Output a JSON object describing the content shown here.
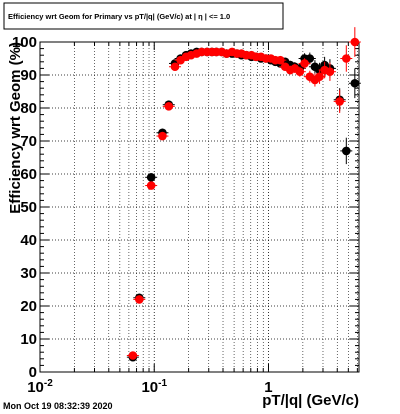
{
  "chart_data": {
    "type": "scatter",
    "title": "Efficiency wrt Geom for Primary vs pT/|q| (GeV/c) at | η | <= 1.0",
    "xlabel": "pT/|q| (GeV/c)",
    "ylabel": "Efficiency wrt Geom (%)",
    "x_scale": "log",
    "xlim": [
      0.01,
      6.2
    ],
    "ylim": [
      0,
      100
    ],
    "grid": true,
    "x_ticks": [
      {
        "value": 0.01,
        "label": "10",
        "sup": "-2"
      },
      {
        "value": 0.1,
        "label": "10",
        "sup": "-1"
      },
      {
        "value": 1,
        "label": "1",
        "sup": ""
      }
    ],
    "y_ticks": [
      0,
      10,
      20,
      30,
      40,
      50,
      60,
      70,
      80,
      90,
      100
    ],
    "series": [
      {
        "color": "#000000",
        "points": [
          {
            "x": 0.065,
            "y": 4.5,
            "err": 0.8
          },
          {
            "x": 0.074,
            "y": 22.5,
            "err": 0.8
          },
          {
            "x": 0.094,
            "y": 59,
            "err": 1.0
          },
          {
            "x": 0.118,
            "y": 72.5,
            "err": 1.2
          },
          {
            "x": 0.134,
            "y": 81,
            "err": 1.0
          },
          {
            "x": 0.152,
            "y": 93.5,
            "err": 0.8
          },
          {
            "x": 0.17,
            "y": 95,
            "err": 0.6
          },
          {
            "x": 0.19,
            "y": 96,
            "err": 0.5
          },
          {
            "x": 0.21,
            "y": 96.5,
            "err": 0.5
          },
          {
            "x": 0.235,
            "y": 97,
            "err": 0.5
          },
          {
            "x": 0.26,
            "y": 97,
            "err": 0.5
          },
          {
            "x": 0.29,
            "y": 97,
            "err": 0.5
          },
          {
            "x": 0.32,
            "y": 97,
            "err": 0.5
          },
          {
            "x": 0.35,
            "y": 97,
            "err": 0.5
          },
          {
            "x": 0.39,
            "y": 97,
            "err": 0.5
          },
          {
            "x": 0.43,
            "y": 96.5,
            "err": 0.5
          },
          {
            "x": 0.48,
            "y": 96.5,
            "err": 0.5
          },
          {
            "x": 0.53,
            "y": 96.5,
            "err": 0.5
          },
          {
            "x": 0.58,
            "y": 96,
            "err": 0.6
          },
          {
            "x": 0.64,
            "y": 96,
            "err": 0.6
          },
          {
            "x": 0.71,
            "y": 95.5,
            "err": 0.6
          },
          {
            "x": 0.78,
            "y": 95.5,
            "err": 0.7
          },
          {
            "x": 0.86,
            "y": 95,
            "err": 0.7
          },
          {
            "x": 0.95,
            "y": 95,
            "err": 0.8
          },
          {
            "x": 1.05,
            "y": 94.5,
            "err": 0.9
          },
          {
            "x": 1.15,
            "y": 94,
            "err": 1.0
          },
          {
            "x": 1.27,
            "y": 93.5,
            "err": 1.1
          },
          {
            "x": 1.4,
            "y": 94,
            "err": 1.2
          },
          {
            "x": 1.55,
            "y": 93,
            "err": 1.3
          },
          {
            "x": 1.7,
            "y": 92.5,
            "err": 1.4
          },
          {
            "x": 1.88,
            "y": 92,
            "err": 1.5
          },
          {
            "x": 2.07,
            "y": 95,
            "err": 1.6
          },
          {
            "x": 2.3,
            "y": 95,
            "err": 1.8
          },
          {
            "x": 2.55,
            "y": 92.5,
            "err": 2.0
          },
          {
            "x": 2.8,
            "y": 91.5,
            "err": 2.2
          },
          {
            "x": 3.1,
            "y": 93,
            "err": 2.5
          },
          {
            "x": 3.45,
            "y": 92,
            "err": 2.8
          },
          {
            "x": 4.2,
            "y": 82.5,
            "err": 3.5
          },
          {
            "x": 4.8,
            "y": 67,
            "err": 4.0
          },
          {
            "x": 5.7,
            "y": 87.5,
            "err": 4.5
          }
        ]
      },
      {
        "color": "#ff0000",
        "points": [
          {
            "x": 0.065,
            "y": 5,
            "err": 0.8
          },
          {
            "x": 0.074,
            "y": 22,
            "err": 0.8
          },
          {
            "x": 0.094,
            "y": 56.5,
            "err": 1.0
          },
          {
            "x": 0.118,
            "y": 71.5,
            "err": 1.2
          },
          {
            "x": 0.134,
            "y": 80.5,
            "err": 1.0
          },
          {
            "x": 0.152,
            "y": 92.5,
            "err": 0.8
          },
          {
            "x": 0.17,
            "y": 94.5,
            "err": 0.6
          },
          {
            "x": 0.19,
            "y": 95.5,
            "err": 0.5
          },
          {
            "x": 0.21,
            "y": 96,
            "err": 0.5
          },
          {
            "x": 0.235,
            "y": 96.5,
            "err": 0.5
          },
          {
            "x": 0.26,
            "y": 97,
            "err": 0.5
          },
          {
            "x": 0.29,
            "y": 97,
            "err": 0.5
          },
          {
            "x": 0.32,
            "y": 97,
            "err": 0.5
          },
          {
            "x": 0.35,
            "y": 97,
            "err": 0.5
          },
          {
            "x": 0.39,
            "y": 97,
            "err": 0.5
          },
          {
            "x": 0.43,
            "y": 96.5,
            "err": 0.5
          },
          {
            "x": 0.48,
            "y": 97,
            "err": 0.5
          },
          {
            "x": 0.53,
            "y": 96.5,
            "err": 0.5
          },
          {
            "x": 0.58,
            "y": 96.5,
            "err": 0.6
          },
          {
            "x": 0.64,
            "y": 96,
            "err": 0.6
          },
          {
            "x": 0.71,
            "y": 96,
            "err": 0.6
          },
          {
            "x": 0.78,
            "y": 95.5,
            "err": 0.7
          },
          {
            "x": 0.86,
            "y": 95.5,
            "err": 0.7
          },
          {
            "x": 0.95,
            "y": 95,
            "err": 0.8
          },
          {
            "x": 1.05,
            "y": 95,
            "err": 0.9
          },
          {
            "x": 1.15,
            "y": 94.5,
            "err": 1.0
          },
          {
            "x": 1.27,
            "y": 94.5,
            "err": 1.1
          },
          {
            "x": 1.4,
            "y": 92.5,
            "err": 1.2
          },
          {
            "x": 1.55,
            "y": 91.5,
            "err": 1.3
          },
          {
            "x": 1.7,
            "y": 92,
            "err": 1.4
          },
          {
            "x": 1.88,
            "y": 91,
            "err": 1.5
          },
          {
            "x": 2.07,
            "y": 93.5,
            "err": 1.6
          },
          {
            "x": 2.3,
            "y": 89.5,
            "err": 1.8
          },
          {
            "x": 2.55,
            "y": 88.5,
            "err": 2.0
          },
          {
            "x": 2.8,
            "y": 89.5,
            "err": 2.2
          },
          {
            "x": 3.1,
            "y": 91.5,
            "err": 2.5
          },
          {
            "x": 3.45,
            "y": 91,
            "err": 2.8
          },
          {
            "x": 4.2,
            "y": 82,
            "err": 3.5
          },
          {
            "x": 4.8,
            "y": 95,
            "err": 4.0
          },
          {
            "x": 5.7,
            "y": 100,
            "err": 4.5
          }
        ]
      }
    ]
  },
  "footer": {
    "timestamp": "Mon Oct 19 08:32:39 2020"
  }
}
